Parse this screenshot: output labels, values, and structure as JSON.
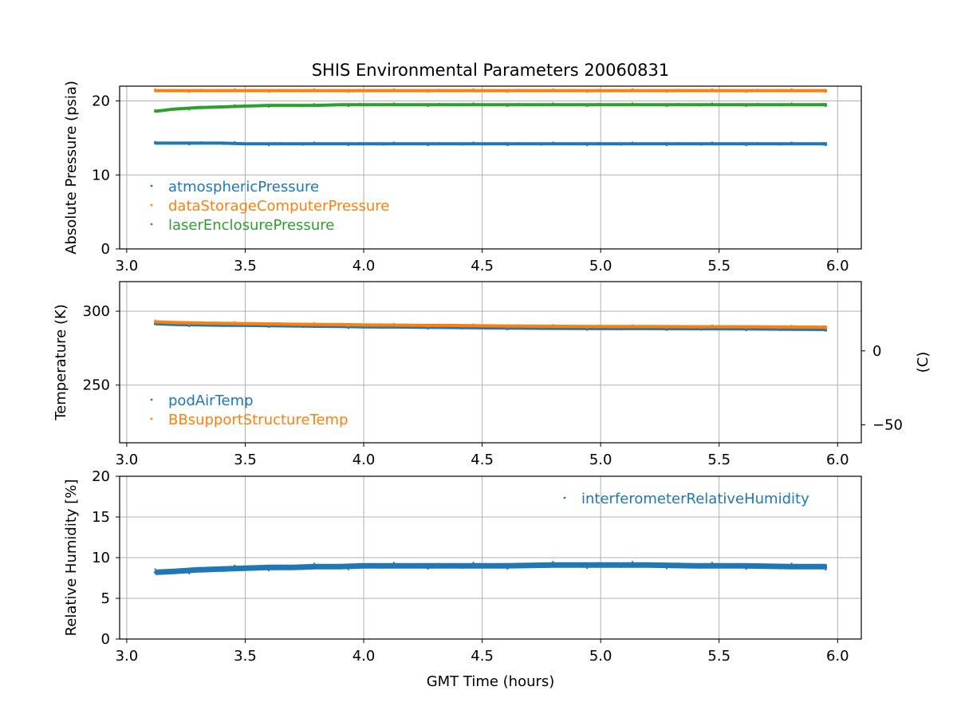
{
  "figure_title": "SHIS Environmental Parameters 20060831",
  "chart_data": [
    {
      "type": "scatter",
      "title": "SHIS Environmental Parameters 20060831",
      "xlabel": "",
      "ylabel": "Absolute Pressure (psia)",
      "xlim": [
        2.97,
        6.1
      ],
      "ylim": [
        0,
        22
      ],
      "xticks": [
        3.0,
        3.5,
        4.0,
        4.5,
        5.0,
        5.5,
        6.0
      ],
      "xtick_labels": [
        "3.0",
        "3.5",
        "4.0",
        "4.5",
        "5.0",
        "5.5",
        "6.0"
      ],
      "yticks": [
        0,
        10,
        20
      ],
      "ytick_labels": [
        "0",
        "10",
        "20"
      ],
      "grid": true,
      "legend_position": "lower-left",
      "x": [
        3.12,
        3.2,
        3.3,
        3.4,
        3.5,
        3.6,
        3.7,
        3.8,
        3.9,
        4.0,
        4.2,
        4.4,
        4.6,
        4.8,
        5.0,
        5.2,
        5.4,
        5.6,
        5.8,
        5.95
      ],
      "series": [
        {
          "name": "atmosphericPressure",
          "color": "#1f77b4",
          "values": [
            14.3,
            14.3,
            14.3,
            14.3,
            14.2,
            14.2,
            14.2,
            14.2,
            14.2,
            14.2,
            14.2,
            14.2,
            14.2,
            14.2,
            14.2,
            14.2,
            14.2,
            14.2,
            14.2,
            14.2
          ]
        },
        {
          "name": "dataStorageComputerPressure",
          "color": "#ff7f0e",
          "values": [
            21.4,
            21.4,
            21.4,
            21.4,
            21.4,
            21.4,
            21.4,
            21.4,
            21.4,
            21.4,
            21.4,
            21.4,
            21.4,
            21.4,
            21.4,
            21.4,
            21.4,
            21.4,
            21.4,
            21.4
          ]
        },
        {
          "name": "laserEnclosurePressure",
          "color": "#2ca02c",
          "values": [
            18.6,
            18.9,
            19.1,
            19.2,
            19.3,
            19.4,
            19.4,
            19.4,
            19.5,
            19.5,
            19.5,
            19.5,
            19.5,
            19.5,
            19.5,
            19.5,
            19.5,
            19.5,
            19.5,
            19.5
          ]
        }
      ]
    },
    {
      "type": "scatter",
      "xlabel": "",
      "ylabel": "Temperature (K)",
      "y2label": "(C)",
      "xlim": [
        2.97,
        6.1
      ],
      "ylim": [
        211,
        320
      ],
      "xticks": [
        3.0,
        3.5,
        4.0,
        4.5,
        5.0,
        5.5,
        6.0
      ],
      "xtick_labels": [
        "3.0",
        "3.5",
        "4.0",
        "4.5",
        "5.0",
        "5.5",
        "6.0"
      ],
      "yticks": [
        250,
        300
      ],
      "ytick_labels": [
        "250",
        "300"
      ],
      "y2ticks_kelvin": [
        273.15,
        223.15
      ],
      "y2tick_labels": [
        "0",
        "−50"
      ],
      "grid": true,
      "legend_position": "lower-left",
      "x": [
        3.12,
        3.2,
        3.3,
        3.4,
        3.5,
        3.6,
        3.7,
        3.8,
        3.9,
        4.0,
        4.2,
        4.4,
        4.6,
        4.8,
        5.0,
        5.2,
        5.4,
        5.6,
        5.8,
        5.95
      ],
      "series": [
        {
          "name": "podAirTemp",
          "color": "#1f77b4",
          "values": [
            291.5,
            291.0,
            290.7,
            290.5,
            290.4,
            290.2,
            290.0,
            289.8,
            289.6,
            289.4,
            289.2,
            288.9,
            288.6,
            288.4,
            288.2,
            288.2,
            288.1,
            288.0,
            287.8,
            287.6
          ]
        },
        {
          "name": "BBsupportStructureTemp",
          "color": "#ff7f0e",
          "values": [
            292.8,
            292.3,
            292.0,
            291.8,
            291.6,
            291.4,
            291.2,
            291.0,
            290.9,
            290.7,
            290.5,
            290.3,
            290.0,
            289.8,
            289.6,
            289.6,
            289.5,
            289.5,
            289.3,
            289.2
          ]
        }
      ]
    },
    {
      "type": "scatter",
      "xlabel": "GMT Time (hours)",
      "ylabel": "Relative Humidity [%]",
      "xlim": [
        2.97,
        6.1
      ],
      "ylim": [
        0,
        20
      ],
      "xticks": [
        3.0,
        3.5,
        4.0,
        4.5,
        5.0,
        5.5,
        6.0
      ],
      "xtick_labels": [
        "3.0",
        "3.5",
        "4.0",
        "4.5",
        "5.0",
        "5.5",
        "6.0"
      ],
      "yticks": [
        0,
        5,
        10,
        15,
        20
      ],
      "ytick_labels": [
        "0",
        "5",
        "10",
        "15",
        "20"
      ],
      "grid": true,
      "legend_position": "top-right",
      "x": [
        3.12,
        3.2,
        3.3,
        3.4,
        3.5,
        3.6,
        3.7,
        3.8,
        3.9,
        4.0,
        4.2,
        4.4,
        4.6,
        4.8,
        5.0,
        5.2,
        5.4,
        5.6,
        5.8,
        5.95
      ],
      "series": [
        {
          "name": "interferometerRelativeHumidity",
          "color": "#1f77b4",
          "values": [
            8.2,
            8.3,
            8.5,
            8.6,
            8.7,
            8.8,
            8.8,
            8.9,
            8.9,
            9.0,
            9.0,
            9.0,
            9.0,
            9.1,
            9.1,
            9.1,
            9.0,
            9.0,
            8.9,
            8.9
          ]
        }
      ]
    }
  ]
}
